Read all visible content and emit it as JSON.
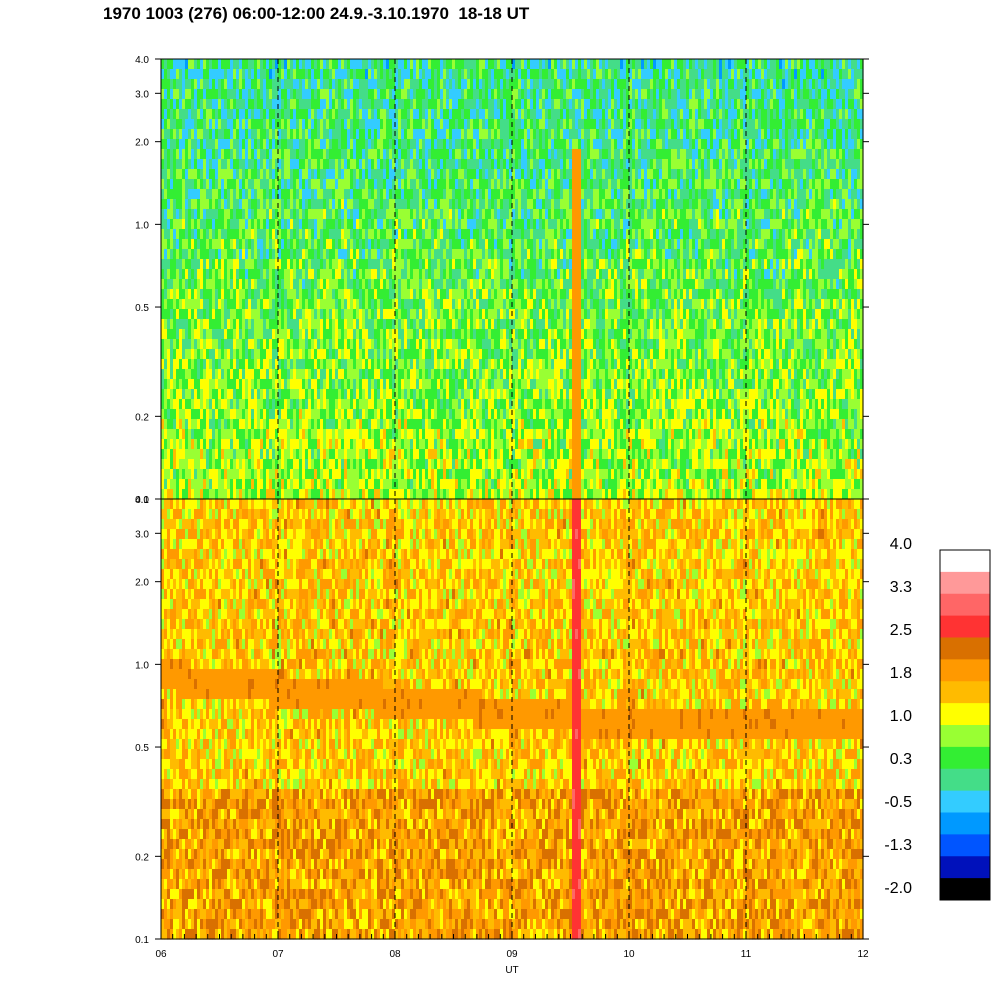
{
  "title": "1970 1003 (276) 06:00-12:00 24.9.-3.10.1970  18-18 UT",
  "chart_data": [
    {
      "type": "heatmap",
      "panel": "top",
      "x_range": [
        "06",
        "12"
      ],
      "y_range": [
        0.1,
        4.0
      ],
      "y_scale": "log",
      "x_tick_labels": [],
      "y_tick_labels": [
        "4.0",
        "3.0",
        "2.0",
        "1.0",
        "0.5",
        "0.2",
        "0.1"
      ],
      "y_ticks": [
        4.0,
        3.0,
        2.0,
        1.0,
        0.5,
        0.2,
        0.1
      ],
      "dashed_verticals_at": [
        7,
        8,
        9,
        10,
        11
      ],
      "dominant_level": 0.6,
      "features": [
        {
          "x": 9.55,
          "note": "vertical orange band",
          "y_to": 1.9,
          "level": 1.9
        }
      ]
    },
    {
      "type": "heatmap",
      "panel": "bottom",
      "x_range": [
        "06",
        "12"
      ],
      "y_range": [
        0.1,
        4.0
      ],
      "y_scale": "log",
      "x_tick_labels": [
        "06",
        "07",
        "08",
        "09",
        "10",
        "11",
        "12"
      ],
      "x_ticks": [
        6,
        7,
        8,
        9,
        10,
        11,
        12
      ],
      "xlabel": "UT",
      "y_tick_labels": [
        "4.0",
        "3.0",
        "2.0",
        "1.0",
        "0.5",
        "0.2",
        "0.1"
      ],
      "y_ticks": [
        4.0,
        3.0,
        2.0,
        1.0,
        0.5,
        0.2,
        0.1
      ],
      "dashed_verticals_at": [
        7,
        8,
        9,
        10,
        11
      ],
      "dominant_level": 1.5,
      "features": [
        {
          "note": "orange band",
          "from_y": 0.9,
          "to_y": 0.62,
          "level": 2.0
        },
        {
          "x": 9.55,
          "note": "vertical red band",
          "level": 2.8
        }
      ]
    }
  ],
  "colorbar": {
    "labels": [
      "4.0",
      "3.3",
      "2.5",
      "1.8",
      "1.0",
      "0.3",
      "-0.5",
      "-1.3",
      "-2.0"
    ],
    "colors": [
      "#ffffff",
      "#ff9999",
      "#ff6666",
      "#ff3333",
      "#d97000",
      "#ff9900",
      "#ffbb00",
      "#ffff00",
      "#99ff33",
      "#33ee33",
      "#44dd88",
      "#33ccff",
      "#0099ff",
      "#0055ff",
      "#0011bb",
      "#000000"
    ]
  }
}
